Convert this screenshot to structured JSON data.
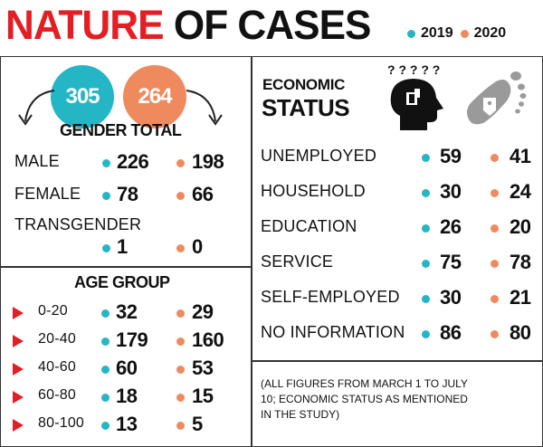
{
  "title": {
    "part1": "NATURE",
    "part2": "OF CASES"
  },
  "legend": {
    "y2019": "2019",
    "y2020": "2020"
  },
  "colors": {
    "y2019": "#25b6c6",
    "y2020": "#ef8a5f",
    "accent": "#e31e24"
  },
  "gender": {
    "total_2019": "305",
    "total_2020": "264",
    "heading": "GENDER TOTAL",
    "rows": [
      {
        "label": "MALE",
        "v2019": "226",
        "v2020": "198"
      },
      {
        "label": "FEMALE",
        "v2019": "78",
        "v2020": "66"
      },
      {
        "label": "TRANSGENDER",
        "v2019": "1",
        "v2020": "0"
      }
    ]
  },
  "age": {
    "heading": "AGE GROUP",
    "rows": [
      {
        "label": "0-20",
        "v2019": "32",
        "v2020": "29"
      },
      {
        "label": "20-40",
        "v2019": "179",
        "v2020": "160"
      },
      {
        "label": "40-60",
        "v2019": "60",
        "v2020": "53"
      },
      {
        "label": "60-80",
        "v2019": "18",
        "v2020": "15"
      },
      {
        "label": "80-100",
        "v2019": "13",
        "v2020": "5"
      }
    ]
  },
  "economic": {
    "heading1": "ECONOMIC",
    "heading2": "STATUS",
    "rows": [
      {
        "label": "UNEMPLOYED",
        "v2019": "59",
        "v2020": "41"
      },
      {
        "label": "HOUSEHOLD",
        "v2019": "30",
        "v2020": "24"
      },
      {
        "label": "EDUCATION",
        "v2019": "26",
        "v2020": "20"
      },
      {
        "label": "SERVICE",
        "v2019": "75",
        "v2020": "78"
      },
      {
        "label": "SELF-EMPLOYED",
        "v2019": "30",
        "v2020": "21"
      },
      {
        "label": "NO INFORMATION",
        "v2019": "86",
        "v2020": "80"
      }
    ]
  },
  "note": {
    "line1": "(ALL FIGURES FROM MARCH 1 TO JULY",
    "line2": "10; ECONOMIC STATUS AS MENTIONED",
    "line3": "IN THE STUDY)"
  },
  "icons": {
    "thinking": "head-with-question-marks-icon",
    "footprint": "footprint-with-tag-icon"
  }
}
